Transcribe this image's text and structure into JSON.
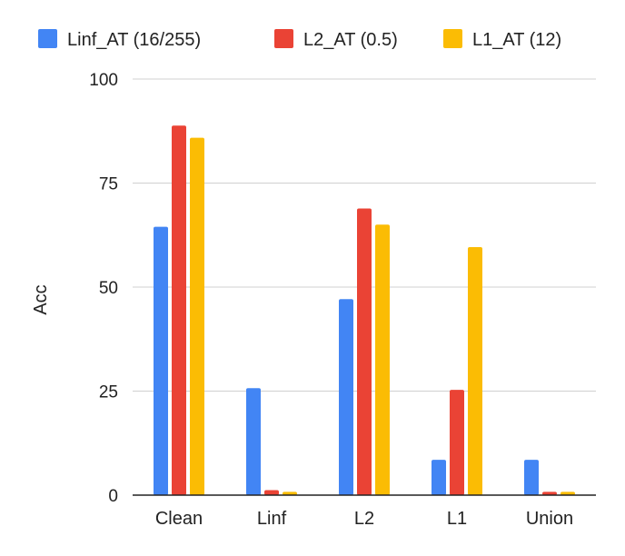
{
  "chart_data": {
    "type": "bar",
    "title": "",
    "xlabel": "",
    "ylabel": "Acc",
    "ylim": [
      0,
      100
    ],
    "yticks": [
      0,
      25,
      50,
      75,
      100
    ],
    "grid": true,
    "legend_position": "top",
    "categories": [
      "Clean",
      "Linf",
      "L2",
      "L1",
      "Union"
    ],
    "series": [
      {
        "name": "Linf_AT (16/255)",
        "color": "#4285F4",
        "values": [
          64.5,
          25.7,
          47.1,
          8.5,
          8.5
        ]
      },
      {
        "name": "L2_AT (0.5)",
        "color": "#EA4335",
        "values": [
          88.8,
          1.2,
          68.9,
          25.3,
          0.8
        ]
      },
      {
        "name": "L1_AT (12)",
        "color": "#FBBC04",
        "values": [
          85.9,
          0.8,
          65.0,
          59.6,
          0.8
        ]
      }
    ]
  }
}
